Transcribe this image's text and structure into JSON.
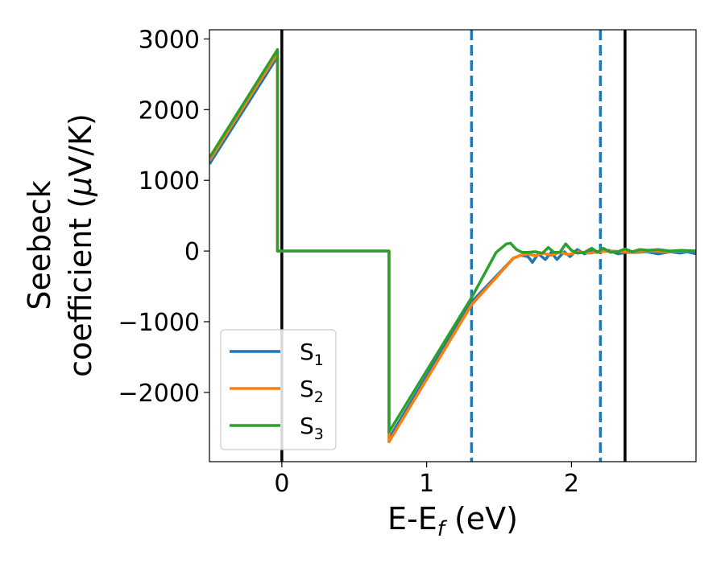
{
  "chart_data": {
    "type": "line",
    "xlabel": "E-E",
    "xlabel_subscript": "f",
    "xlabel_unit": " (eV)",
    "ylabel_line1": "Seebeck",
    "ylabel_line2_prefix": "coefficient  (",
    "ylabel_mu": "μ",
    "ylabel_line2_suffix": "V/K)",
    "xlim": [
      -0.5,
      2.86
    ],
    "ylim": [
      -2980,
      3130
    ],
    "x_ticks": [
      0,
      1,
      2
    ],
    "x_tick_labels": [
      "0",
      "1",
      "2"
    ],
    "y_ticks": [
      3000,
      2000,
      1000,
      0,
      -1000,
      -2000
    ],
    "y_tick_labels": [
      "3000",
      "2000",
      "1000",
      "0",
      "−1000",
      "−2000"
    ],
    "grid": false,
    "legend_position": "lower-left",
    "reference_lines": [
      {
        "x": 0,
        "style": "solid",
        "color": "#000000"
      },
      {
        "x": 2.37,
        "style": "solid",
        "color": "#000000"
      },
      {
        "x": 1.31,
        "style": "dashed",
        "color": "#1f77b4"
      },
      {
        "x": 2.2,
        "style": "dashed",
        "color": "#1f77b4"
      }
    ],
    "series": [
      {
        "name": "S",
        "subscript": "1",
        "color": "#1f77b4",
        "x": [
          -0.5,
          -0.03,
          -0.03,
          0.74,
          0.74,
          1.31,
          1.6,
          1.65,
          1.7,
          1.73,
          1.77,
          1.82,
          1.86,
          1.9,
          1.95,
          1.99,
          2.04,
          2.09,
          2.14,
          2.2,
          2.26,
          2.32,
          2.38,
          2.45,
          2.52,
          2.6,
          2.68,
          2.75,
          2.8,
          2.86
        ],
        "y": [
          1230,
          2750,
          0,
          0,
          -2650,
          -720,
          -100,
          -60,
          -80,
          -160,
          -40,
          -120,
          -20,
          -120,
          -10,
          -80,
          20,
          -40,
          0,
          -10,
          10,
          -40,
          -20,
          -20,
          -10,
          -40,
          -10,
          -30,
          -10,
          -40
        ]
      },
      {
        "name": "S",
        "subscript": "2",
        "color": "#ff7f0e",
        "x": [
          -0.5,
          -0.03,
          -0.03,
          0.74,
          0.74,
          1.31,
          1.6,
          1.65,
          1.7,
          1.75,
          1.8,
          1.86,
          1.92,
          1.98,
          2.05,
          2.12,
          2.2,
          2.28,
          2.36,
          2.45,
          2.55,
          2.65,
          2.75,
          2.86
        ],
        "y": [
          1280,
          2800,
          0,
          0,
          -2700,
          -760,
          -100,
          -60,
          -40,
          -70,
          -30,
          -60,
          -20,
          -50,
          -10,
          -30,
          -10,
          0,
          -10,
          -10,
          0,
          -10,
          0,
          0
        ]
      },
      {
        "name": "S",
        "subscript": "3",
        "color": "#2ca02c",
        "x": [
          -0.5,
          -0.03,
          -0.03,
          0.74,
          0.74,
          1.31,
          1.48,
          1.55,
          1.58,
          1.62,
          1.66,
          1.7,
          1.75,
          1.8,
          1.84,
          1.88,
          1.92,
          1.96,
          2.0,
          2.04,
          2.09,
          2.14,
          2.18,
          2.22,
          2.27,
          2.32,
          2.37,
          2.42,
          2.47,
          2.53,
          2.6,
          2.68,
          2.76,
          2.86
        ],
        "y": [
          1320,
          2850,
          0,
          0,
          -2560,
          -660,
          -20,
          100,
          110,
          20,
          -20,
          -20,
          -10,
          -30,
          50,
          -20,
          -20,
          100,
          10,
          -30,
          -20,
          40,
          -20,
          40,
          -20,
          -10,
          30,
          -10,
          20,
          10,
          20,
          0,
          10,
          0
        ]
      }
    ]
  }
}
